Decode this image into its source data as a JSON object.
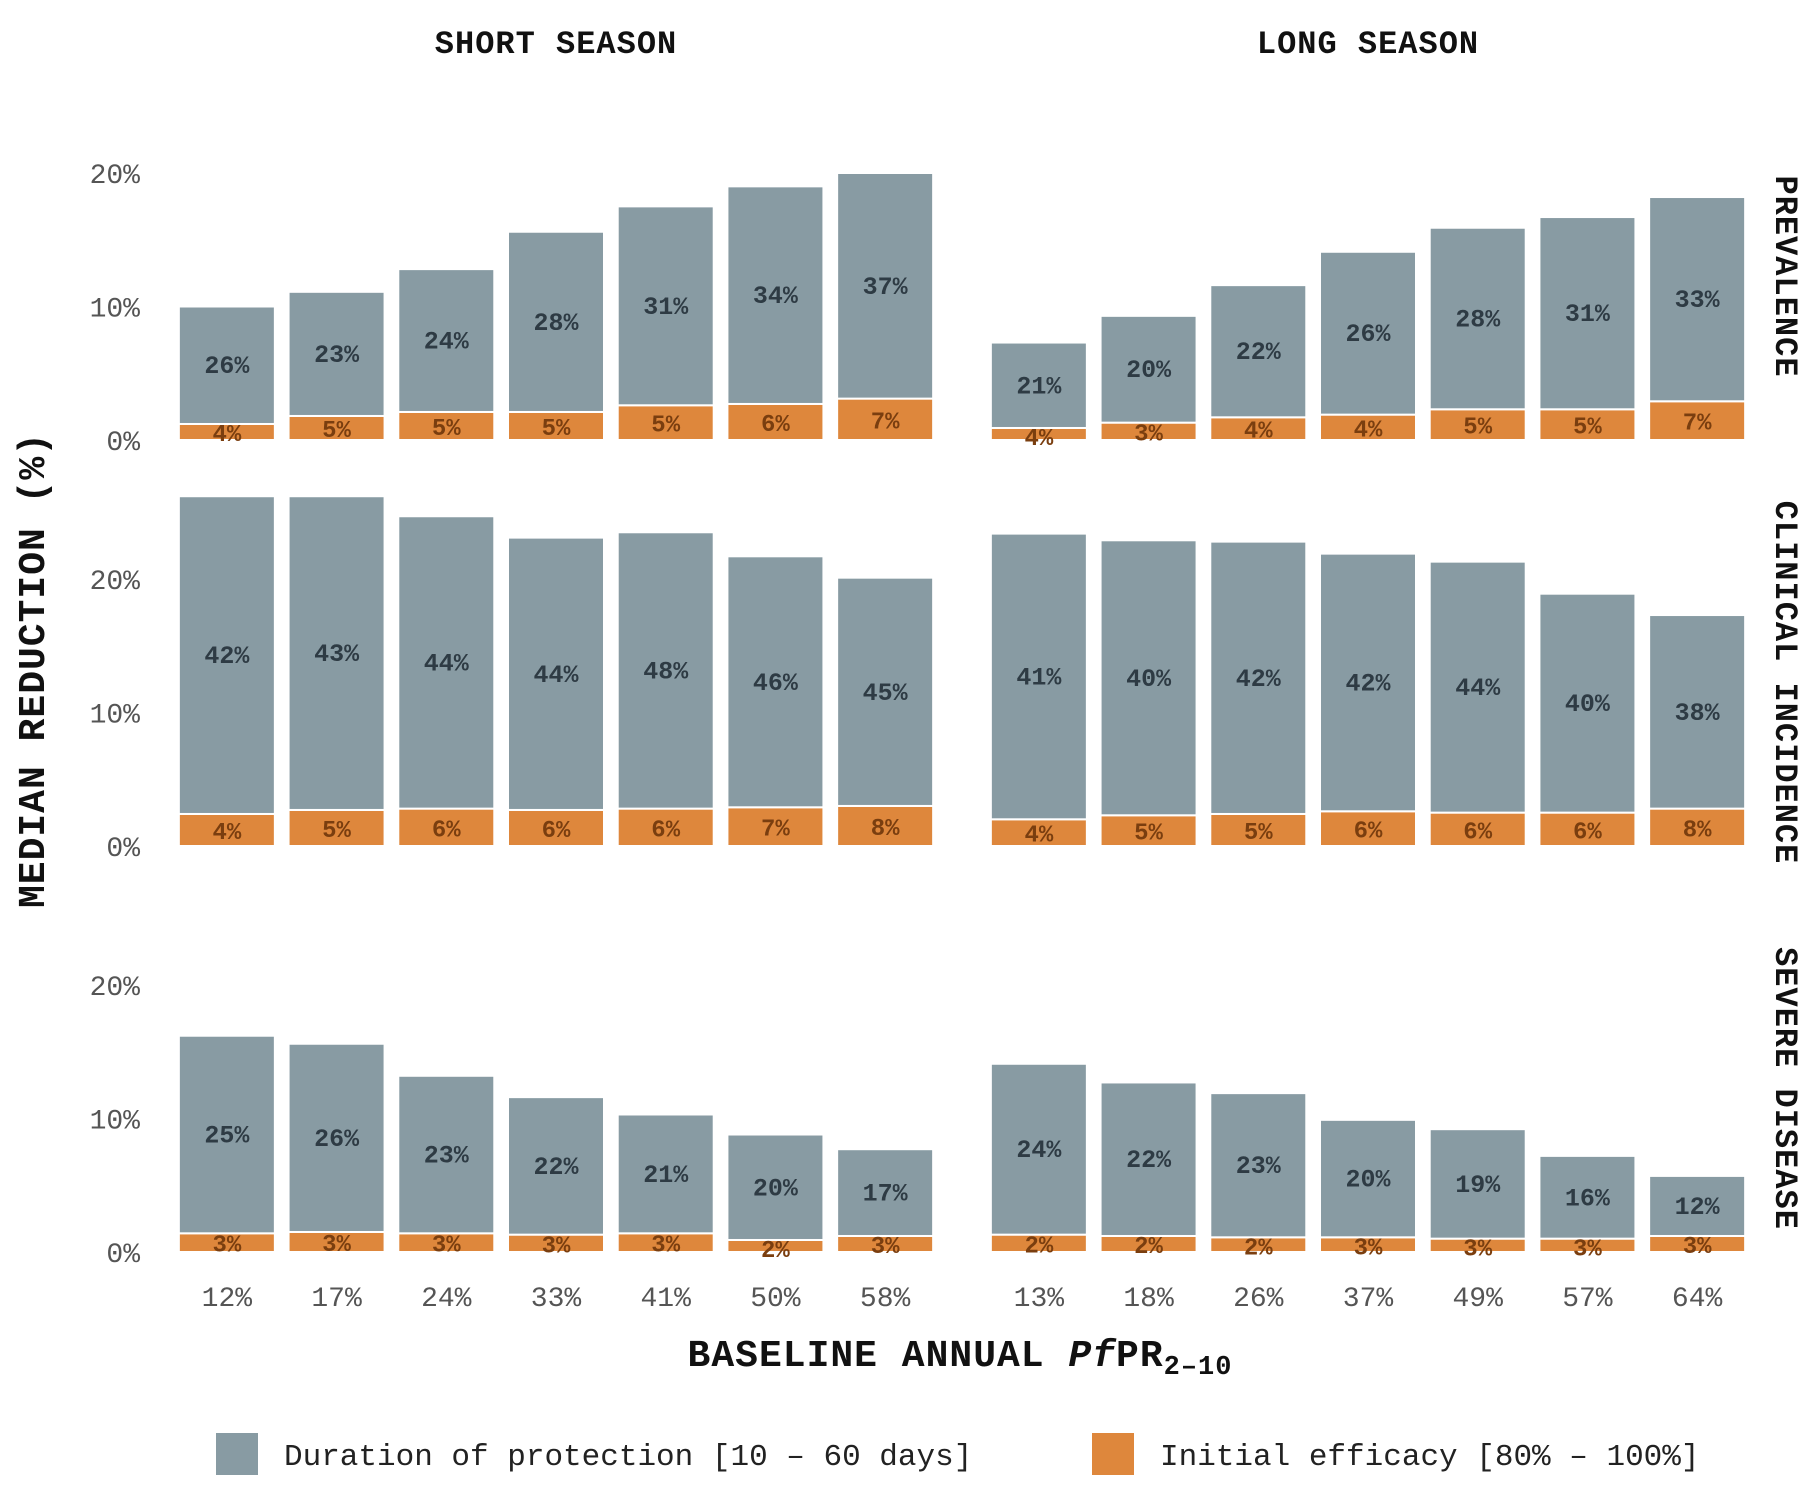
{
  "chart_data": {
    "type": "bar",
    "stacked": true,
    "ylabel": "MEDIAN REDUCTION (%)",
    "xlabel": {
      "prefix": "BASELINE ANNUAL ",
      "italic": "Pf",
      "main": "PR",
      "sub": "2–10"
    },
    "ylim": [
      0,
      20
    ],
    "yticks": [
      "0%",
      "10%",
      "20%"
    ],
    "columns": [
      {
        "title": "SHORT SEASON",
        "categories": [
          "12%",
          "17%",
          "24%",
          "33%",
          "41%",
          "50%",
          "58%"
        ]
      },
      {
        "title": "LONG SEASON",
        "categories": [
          "13%",
          "18%",
          "26%",
          "37%",
          "49%",
          "57%",
          "64%"
        ]
      }
    ],
    "rows": [
      {
        "title": "PREVALENCE",
        "panels": [
          {
            "duration": [
              8.8,
              9.3,
              10.7,
              13.5,
              14.9,
              16.3,
              16.9
            ],
            "efficacy": [
              1.2,
              1.8,
              2.1,
              2.1,
              2.6,
              2.7,
              3.1
            ],
            "duration_labels": [
              "26%",
              "23%",
              "24%",
              "28%",
              "31%",
              "34%",
              "37%"
            ],
            "efficacy_labels": [
              "4%",
              "5%",
              "5%",
              "5%",
              "5%",
              "6%",
              "7%"
            ]
          },
          {
            "duration": [
              6.4,
              8.0,
              9.9,
              12.2,
              13.6,
              14.4,
              15.3
            ],
            "efficacy": [
              0.9,
              1.3,
              1.7,
              1.9,
              2.3,
              2.3,
              2.9
            ],
            "duration_labels": [
              "21%",
              "20%",
              "22%",
              "26%",
              "28%",
              "31%",
              "33%"
            ],
            "efficacy_labels": [
              "4%",
              "3%",
              "4%",
              "4%",
              "5%",
              "5%",
              "7%"
            ]
          }
        ]
      },
      {
        "title": "CLINICAL INCIDENCE",
        "panels": [
          {
            "duration": [
              23.8,
              23.5,
              21.9,
              20.4,
              20.7,
              18.8,
              17.1
            ],
            "efficacy": [
              2.4,
              2.7,
              2.8,
              2.7,
              2.8,
              2.9,
              3.0
            ],
            "duration_labels": [
              "42%",
              "43%",
              "44%",
              "44%",
              "48%",
              "46%",
              "45%"
            ],
            "efficacy_labels": [
              "4%",
              "5%",
              "6%",
              "6%",
              "6%",
              "7%",
              "8%"
            ]
          },
          {
            "duration": [
              21.4,
              20.6,
              20.4,
              19.3,
              18.8,
              16.4,
              14.5
            ],
            "efficacy": [
              2.0,
              2.3,
              2.4,
              2.6,
              2.5,
              2.5,
              2.8
            ],
            "duration_labels": [
              "41%",
              "40%",
              "42%",
              "42%",
              "44%",
              "40%",
              "38%"
            ],
            "efficacy_labels": [
              "4%",
              "5%",
              "5%",
              "6%",
              "6%",
              "6%",
              "8%"
            ]
          }
        ]
      },
      {
        "title": "SEVERE DISEASE",
        "panels": [
          {
            "duration": [
              14.8,
              14.1,
              11.8,
              10.3,
              8.9,
              7.9,
              6.5
            ],
            "efficacy": [
              1.4,
              1.5,
              1.4,
              1.3,
              1.4,
              0.9,
              1.2
            ],
            "duration_labels": [
              "25%",
              "26%",
              "23%",
              "22%",
              "21%",
              "20%",
              "17%"
            ],
            "efficacy_labels": [
              "3%",
              "3%",
              "3%",
              "3%",
              "3%",
              "2%",
              "3%"
            ]
          },
          {
            "duration": [
              12.8,
              11.5,
              10.8,
              8.8,
              8.2,
              6.2,
              4.5
            ],
            "efficacy": [
              1.3,
              1.2,
              1.1,
              1.1,
              1.0,
              1.0,
              1.2
            ],
            "duration_labels": [
              "24%",
              "22%",
              "23%",
              "20%",
              "19%",
              "16%",
              "12%"
            ],
            "efficacy_labels": [
              "2%",
              "2%",
              "2%",
              "3%",
              "3%",
              "3%",
              "3%"
            ]
          }
        ]
      }
    ],
    "legend": [
      {
        "label": "Duration of protection [10 – 60 days]",
        "color": "#889ba3"
      },
      {
        "label": "Initial efficacy [80% – 100%]",
        "color": "#de873c"
      }
    ],
    "legend_placement": "bottom",
    "grid": false
  }
}
